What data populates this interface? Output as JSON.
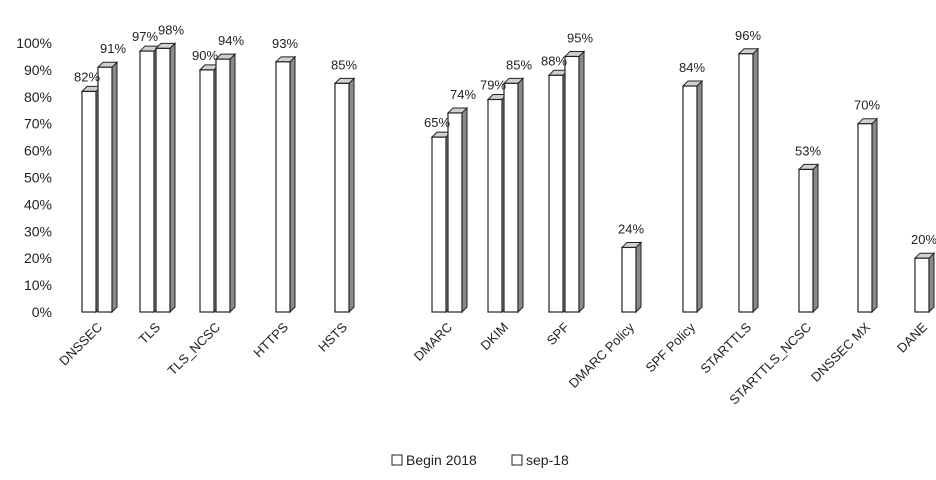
{
  "chart_data": {
    "type": "bar",
    "style": "3d-clustered-column",
    "categories": [
      "DNSSEC",
      "TLS",
      "TLS_NCSC",
      "HTTPS",
      "HSTS",
      "DMARC",
      "DKIM",
      "SPF",
      "DMARC Policy",
      "SPF Policy",
      "STARTTLS",
      "STARTTLS_NCSC",
      "DNSSEC MX",
      "DANE"
    ],
    "series": [
      {
        "name": "Begin 2018",
        "values": [
          82,
          97,
          90,
          null,
          null,
          65,
          79,
          88,
          null,
          null,
          null,
          null,
          null,
          null
        ]
      },
      {
        "name": "sep-18",
        "values": [
          91,
          98,
          94,
          93,
          85,
          74,
          85,
          95,
          24,
          84,
          96,
          53,
          70,
          20
        ]
      }
    ],
    "ylim": [
      0,
      100
    ],
    "yticks": [
      "0%",
      "10%",
      "20%",
      "30%",
      "40%",
      "50%",
      "60%",
      "70%",
      "80%",
      "90%",
      "100%"
    ],
    "value_suffix": "%",
    "grid": false,
    "legend_position": "bottom",
    "colors": {
      "begin": "#ffffff",
      "sep": "#ffffff",
      "outline": "#222222",
      "side": "#8a8a8a",
      "top": "#d0d0d0"
    }
  }
}
